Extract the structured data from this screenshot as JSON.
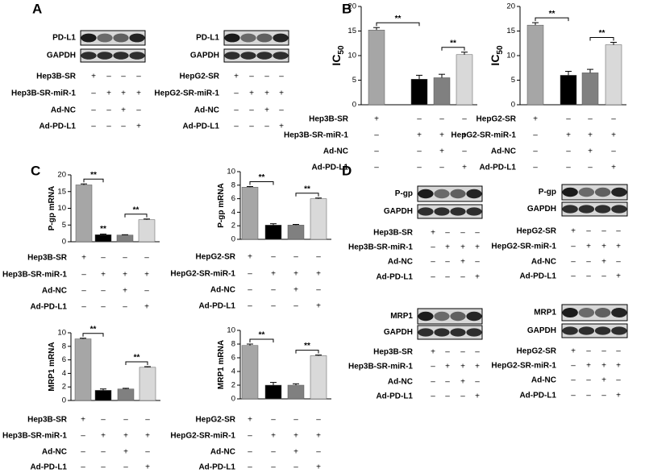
{
  "panel_labels": [
    "A",
    "B",
    "C",
    "D"
  ],
  "blots": [
    {
      "bands": [
        "PD-L1",
        "GAPDH"
      ],
      "conditions": [
        {
          "name": "Hep3B-SR",
          "signs": [
            "+",
            "–",
            "–",
            "–"
          ]
        },
        {
          "name": "Hep3B-SR-miR-1",
          "signs": [
            "–",
            "+",
            "+",
            "+"
          ]
        },
        {
          "name": "Ad-NC",
          "signs": [
            "–",
            "–",
            "+",
            "–"
          ]
        },
        {
          "name": "Ad-PD-L1",
          "signs": [
            "–",
            "–",
            "–",
            "+"
          ]
        }
      ]
    },
    {
      "bands": [
        "PD-L1",
        "GAPDH"
      ],
      "conditions": [
        {
          "name": "HepG2-SR",
          "signs": [
            "+",
            "–",
            "–",
            "–"
          ]
        },
        {
          "name": "HepG2-SR-miR-1",
          "signs": [
            "–",
            "+",
            "+",
            "+"
          ]
        },
        {
          "name": "Ad-NC",
          "signs": [
            "–",
            "–",
            "+",
            "–"
          ]
        },
        {
          "name": "Ad-PD-L1",
          "signs": [
            "–",
            "–",
            "–",
            "+"
          ]
        }
      ]
    },
    {
      "bands": [
        "P-gp",
        "GAPDH"
      ],
      "conditions": [
        {
          "name": "Hep3B-SR",
          "signs": [
            "+",
            "–",
            "–",
            "–"
          ]
        },
        {
          "name": "Hep3B-SR-miR-1",
          "signs": [
            "–",
            "+",
            "+",
            "+"
          ]
        },
        {
          "name": "Ad-NC",
          "signs": [
            "–",
            "–",
            "+",
            "–"
          ]
        },
        {
          "name": "Ad-PD-L1",
          "signs": [
            "–",
            "–",
            "–",
            "+"
          ]
        }
      ]
    },
    {
      "bands": [
        "P-gp",
        "GAPDH"
      ],
      "conditions": [
        {
          "name": "HepG2-SR",
          "signs": [
            "+",
            "–",
            "–",
            "–"
          ]
        },
        {
          "name": "HepG2-SR-miR-1",
          "signs": [
            "–",
            "+",
            "+",
            "+"
          ]
        },
        {
          "name": "Ad-NC",
          "signs": [
            "–",
            "–",
            "+",
            "–"
          ]
        },
        {
          "name": "Ad-PD-L1",
          "signs": [
            "–",
            "–",
            "–",
            "+"
          ]
        }
      ]
    },
    {
      "bands": [
        "MRP1",
        "GAPDH"
      ],
      "conditions": [
        {
          "name": "Hep3B-SR",
          "signs": [
            "+",
            "–",
            "–",
            "–"
          ]
        },
        {
          "name": "Hep3B-SR-miR-1",
          "signs": [
            "–",
            "+",
            "+",
            "+"
          ]
        },
        {
          "name": "Ad-NC",
          "signs": [
            "–",
            "–",
            "+",
            "–"
          ]
        },
        {
          "name": "Ad-PD-L1",
          "signs": [
            "–",
            "–",
            "–",
            "+"
          ]
        }
      ]
    },
    {
      "bands": [
        "MRP1",
        "GAPDH"
      ],
      "conditions": [
        {
          "name": "HepG2-SR",
          "signs": [
            "+",
            "–",
            "–",
            "–"
          ]
        },
        {
          "name": "HepG2-SR-miR-1",
          "signs": [
            "–",
            "+",
            "+",
            "+"
          ]
        },
        {
          "name": "Ad-NC",
          "signs": [
            "–",
            "–",
            "+",
            "–"
          ]
        },
        {
          "name": "Ad-PD-L1",
          "signs": [
            "–",
            "–",
            "–",
            "+"
          ]
        }
      ]
    }
  ],
  "chart_data": [
    {
      "type": "bar",
      "ylabel": "IC",
      "ylabel_sub": "50",
      "ylim": [
        0,
        20
      ],
      "yticks": [
        0,
        5,
        10,
        15,
        20
      ],
      "categories": [
        null,
        null,
        null,
        null
      ],
      "values": [
        15.2,
        5.2,
        5.5,
        10.2
      ],
      "errors": [
        0.5,
        0.8,
        0.7,
        0.5
      ],
      "colors": [
        "#a6a6a6",
        "#000000",
        "#808080",
        "#d9d9d9"
      ],
      "annotations": [
        {
          "text": "**",
          "bars": [
            0,
            1
          ]
        },
        {
          "text": "**",
          "bars": [
            2,
            3
          ]
        }
      ],
      "conditions": [
        {
          "name": "Hep3B-SR",
          "signs": [
            "+",
            "–",
            "–",
            "–"
          ]
        },
        {
          "name": "Hep3B-SR-miR-1",
          "signs": [
            "–",
            "+",
            "+",
            "+"
          ]
        },
        {
          "name": "Ad-NC",
          "signs": [
            "–",
            "–",
            "+",
            "–"
          ]
        },
        {
          "name": "Ad-PD-L1",
          "signs": [
            "–",
            "–",
            "–",
            "+"
          ]
        }
      ]
    },
    {
      "type": "bar",
      "ylabel": "IC",
      "ylabel_sub": "50",
      "ylim": [
        0,
        20
      ],
      "yticks": [
        0,
        5,
        10,
        15,
        20
      ],
      "categories": [
        null,
        null,
        null,
        null
      ],
      "values": [
        16.2,
        6.0,
        6.5,
        12.2
      ],
      "errors": [
        0.5,
        0.8,
        0.7,
        0.5
      ],
      "colors": [
        "#a6a6a6",
        "#000000",
        "#808080",
        "#d9d9d9"
      ],
      "annotations": [
        {
          "text": "**",
          "bars": [
            0,
            1
          ]
        },
        {
          "text": "**",
          "bars": [
            2,
            3
          ]
        }
      ],
      "conditions": [
        {
          "name": "HepG2-SR",
          "signs": [
            "+",
            "–",
            "–",
            "–"
          ]
        },
        {
          "name": "HepG2-SR-miR-1",
          "signs": [
            "–",
            "+",
            "+",
            "+"
          ]
        },
        {
          "name": "Ad-NC",
          "signs": [
            "–",
            "–",
            "+",
            "–"
          ]
        },
        {
          "name": "Ad-PD-L1",
          "signs": [
            "–",
            "–",
            "–",
            "+"
          ]
        }
      ]
    },
    {
      "type": "bar",
      "ylabel": "P-gp mRNA",
      "ylim": [
        0,
        20
      ],
      "yticks": [
        0,
        5,
        10,
        15,
        20
      ],
      "categories": [
        null,
        null,
        null,
        null
      ],
      "values": [
        17,
        2.1,
        2.0,
        6.6
      ],
      "errors": [
        0.3,
        0.2,
        0.1,
        0.2
      ],
      "colors": [
        "#a6a6a6",
        "#000000",
        "#808080",
        "#d9d9d9"
      ],
      "annotations": [
        {
          "text": "**",
          "bars": [
            0,
            1
          ]
        },
        {
          "text": "**",
          "bars": [
            1
          ]
        },
        {
          "text": "**",
          "bars": [
            2,
            3
          ]
        }
      ],
      "conditions": [
        {
          "name": "Hep3B-SR",
          "signs": [
            "+",
            "–",
            "–",
            "–"
          ]
        },
        {
          "name": "Hep3B-SR-miR-1",
          "signs": [
            "–",
            "+",
            "+",
            "+"
          ]
        },
        {
          "name": "Ad-NC",
          "signs": [
            "–",
            "–",
            "+",
            "–"
          ]
        },
        {
          "name": "Ad-PD-L1",
          "signs": [
            "–",
            "–",
            "–",
            "+"
          ]
        }
      ]
    },
    {
      "type": "bar",
      "ylabel": "P-gp mRNA",
      "ylim": [
        0,
        10
      ],
      "yticks": [
        0,
        2,
        4,
        6,
        8,
        10
      ],
      "categories": [
        null,
        null,
        null,
        null
      ],
      "values": [
        7.7,
        2.1,
        2.1,
        6.0
      ],
      "errors": [
        0.1,
        0.2,
        0.1,
        0.1
      ],
      "colors": [
        "#a6a6a6",
        "#000000",
        "#808080",
        "#d9d9d9"
      ],
      "annotations": [
        {
          "text": "**",
          "bars": [
            0,
            1
          ]
        },
        {
          "text": "**",
          "bars": [
            2,
            3
          ]
        }
      ],
      "conditions": [
        {
          "name": "HepG2-SR",
          "signs": [
            "+",
            "–",
            "–",
            "–"
          ]
        },
        {
          "name": "HepG2-SR-miR-1",
          "signs": [
            "–",
            "+",
            "+",
            "+"
          ]
        },
        {
          "name": "Ad-NC",
          "signs": [
            "–",
            "–",
            "+",
            "–"
          ]
        },
        {
          "name": "Ad-PD-L1",
          "signs": [
            "–",
            "–",
            "–",
            "+"
          ]
        }
      ]
    },
    {
      "type": "bar",
      "ylabel": "MRP1 mRNA",
      "ylim": [
        0,
        10
      ],
      "yticks": [
        0,
        2,
        4,
        6,
        8,
        10
      ],
      "categories": [
        null,
        null,
        null,
        null
      ],
      "values": [
        9.1,
        1.5,
        1.7,
        4.9
      ],
      "errors": [
        0.1,
        0.2,
        0.1,
        0.1
      ],
      "colors": [
        "#a6a6a6",
        "#000000",
        "#808080",
        "#d9d9d9"
      ],
      "annotations": [
        {
          "text": "**",
          "bars": [
            0,
            1
          ]
        },
        {
          "text": "**",
          "bars": [
            2,
            3
          ]
        }
      ],
      "conditions": [
        {
          "name": "Hep3B-SR",
          "signs": [
            "+",
            "–",
            "–",
            "–"
          ]
        },
        {
          "name": "Hep3B-SR-miR-1",
          "signs": [
            "–",
            "+",
            "+",
            "+"
          ]
        },
        {
          "name": "Ad-NC",
          "signs": [
            "–",
            "–",
            "+",
            "–"
          ]
        },
        {
          "name": "Ad-PD-L1",
          "signs": [
            "–",
            "–",
            "–",
            "+"
          ]
        }
      ]
    },
    {
      "type": "bar",
      "ylabel": "MRP1 mRNA",
      "ylim": [
        0,
        10
      ],
      "yticks": [
        0,
        2,
        4,
        6,
        8,
        10
      ],
      "categories": [
        null,
        null,
        null,
        null
      ],
      "values": [
        7.8,
        2.0,
        2.0,
        6.3
      ],
      "errors": [
        0.2,
        0.4,
        0.2,
        0.1
      ],
      "colors": [
        "#a6a6a6",
        "#000000",
        "#808080",
        "#d9d9d9"
      ],
      "annotations": [
        {
          "text": "**",
          "bars": [
            0,
            1
          ]
        },
        {
          "text": "**",
          "bars": [
            2,
            3
          ]
        }
      ],
      "conditions": [
        {
          "name": "HepG2-SR",
          "signs": [
            "+",
            "–",
            "–",
            "–"
          ]
        },
        {
          "name": "HepG2-SR-miR-1",
          "signs": [
            "–",
            "+",
            "+",
            "+"
          ]
        },
        {
          "name": "Ad-NC",
          "signs": [
            "–",
            "–",
            "+",
            "–"
          ]
        },
        {
          "name": "Ad-PD-L1",
          "signs": [
            "–",
            "–",
            "–",
            "+"
          ]
        }
      ]
    }
  ]
}
